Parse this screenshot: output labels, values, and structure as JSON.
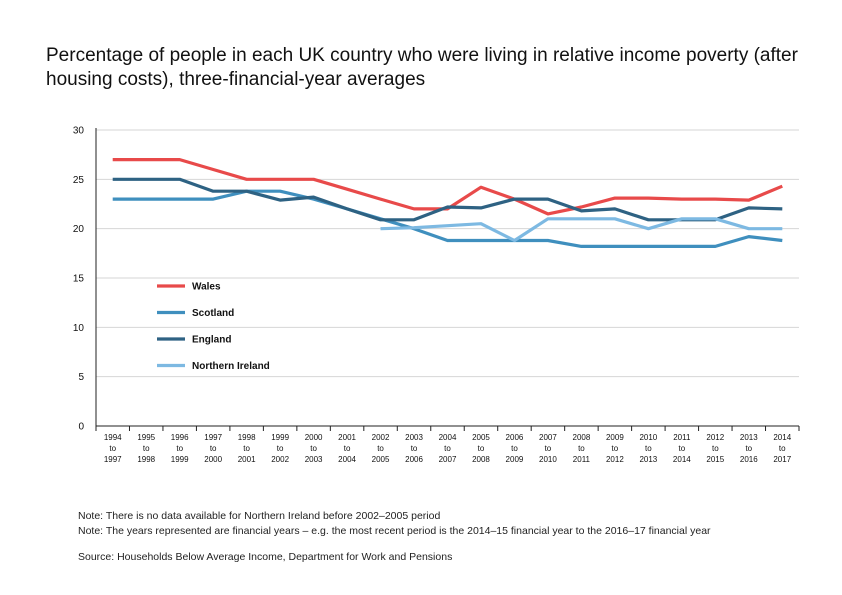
{
  "chart_data": {
    "type": "line",
    "title": "Percentage of people in each UK country who were living in relative income poverty (after housing costs), three-financial-year averages",
    "xlabel": "",
    "ylabel": "",
    "ylim": [
      0,
      30
    ],
    "yticks": [
      0,
      5,
      10,
      15,
      20,
      25,
      30
    ],
    "grid": true,
    "legend_position": "left-middle",
    "categories": [
      [
        "1994",
        "to",
        "1997"
      ],
      [
        "1995",
        "to",
        "1998"
      ],
      [
        "1996",
        "to",
        "1999"
      ],
      [
        "1997",
        "to",
        "2000"
      ],
      [
        "1998",
        "to",
        "2001"
      ],
      [
        "1999",
        "to",
        "2002"
      ],
      [
        "2000",
        "to",
        "2003"
      ],
      [
        "2001",
        "to",
        "2004"
      ],
      [
        "2002",
        "to",
        "2005"
      ],
      [
        "2003",
        "to",
        "2006"
      ],
      [
        "2004",
        "to",
        "2007"
      ],
      [
        "2005",
        "to",
        "2008"
      ],
      [
        "2006",
        "to",
        "2009"
      ],
      [
        "2007",
        "to",
        "2010"
      ],
      [
        "2008",
        "to",
        "2011"
      ],
      [
        "2009",
        "to",
        "2012"
      ],
      [
        "2010",
        "to",
        "2013"
      ],
      [
        "2011",
        "to",
        "2014"
      ],
      [
        "2012",
        "to",
        "2015"
      ],
      [
        "2013",
        "to",
        "2016"
      ],
      [
        "2014",
        "to",
        "2017"
      ]
    ],
    "series": [
      {
        "name": "Wales",
        "color": "#e84a4a",
        "values": [
          27,
          27,
          27,
          26,
          25,
          25,
          25,
          24,
          23,
          22,
          22,
          24.2,
          23,
          21.5,
          22.2,
          23.1,
          23.1,
          23,
          23,
          22.9,
          24.3
        ]
      },
      {
        "name": "Scotland",
        "color": "#3f8fbe",
        "values": [
          23,
          23,
          23,
          23,
          23.8,
          23.8,
          23,
          22,
          21,
          20,
          18.8,
          18.8,
          18.8,
          18.8,
          18.2,
          18.2,
          18.2,
          18.2,
          18.2,
          19.2,
          18.8
        ]
      },
      {
        "name": "England",
        "color": "#2e6283",
        "values": [
          25,
          25,
          25,
          23.8,
          23.8,
          22.9,
          23.2,
          22,
          20.9,
          20.9,
          22.2,
          22.1,
          23,
          23,
          21.8,
          22,
          20.9,
          20.9,
          20.9,
          22.1,
          22
        ]
      },
      {
        "name": "Northern Ireland",
        "color": "#7db9e2",
        "values": [
          null,
          null,
          null,
          null,
          null,
          null,
          null,
          null,
          20,
          20.1,
          20.3,
          20.5,
          18.8,
          21,
          21,
          21,
          20,
          21,
          21,
          20,
          20
        ]
      }
    ]
  },
  "notes": [
    "Note: There is no data available for Northern Ireland before 2002–2005 period",
    "Note: The years represented are financial years – e.g. the most recent period is the 2014–15 financial year to the 2016–17 financial year"
  ],
  "source": "Source: Households Below Average Income, Department for Work and Pensions"
}
